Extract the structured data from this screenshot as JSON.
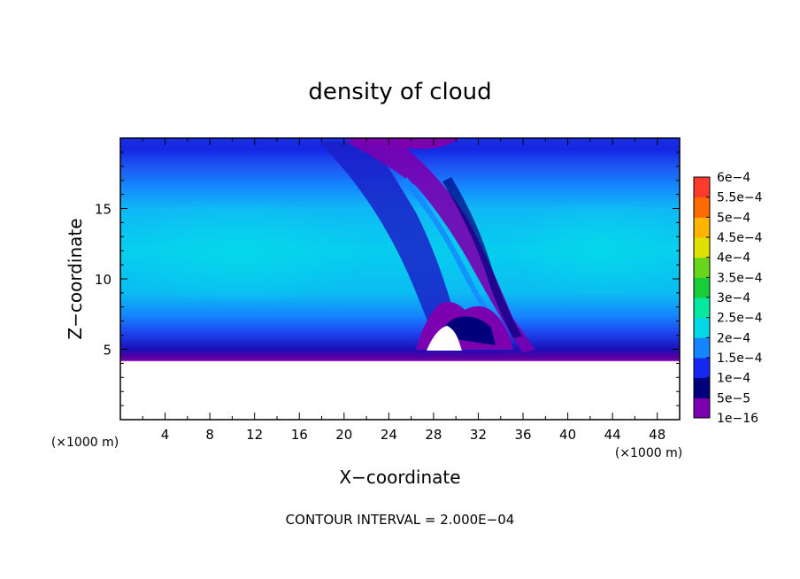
{
  "chart_data": {
    "type": "heatmap",
    "title": "density of cloud",
    "xlabel": "X−coordinate",
    "ylabel": "Z−coordinate",
    "x_unit": "(×1000 m)",
    "y_unit": "(×1000 m)",
    "xlim": [
      0,
      50
    ],
    "ylim": [
      0,
      20
    ],
    "x_ticks": [
      4,
      8,
      12,
      16,
      20,
      24,
      28,
      32,
      36,
      40,
      44,
      48
    ],
    "y_ticks": [
      5,
      10,
      15
    ],
    "cloud_base_z": 5,
    "colorbar": {
      "levels": [
        {
          "label": "1e−16",
          "color": "#7a00b0"
        },
        {
          "label": "5e−5",
          "color": "#00007d"
        },
        {
          "label": "1e−4",
          "color": "#1428ef"
        },
        {
          "label": "1.5e−4",
          "color": "#1586ff"
        },
        {
          "label": "2e−4",
          "color": "#00d7e8"
        },
        {
          "label": "2.5e−4",
          "color": "#05e8a0"
        },
        {
          "label": "3e−4",
          "color": "#19cc39"
        },
        {
          "label": "3.5e−4",
          "color": "#68d51a"
        },
        {
          "label": "4e−4",
          "color": "#dfe000"
        },
        {
          "label": "4.5e−4",
          "color": "#ffb400"
        },
        {
          "label": "5e−4",
          "color": "#ff6b00"
        },
        {
          "label": "5.5e−4",
          "color": "#ff3b2e"
        },
        {
          "label": "6e−4",
          "color": "#ff8c8c"
        }
      ]
    },
    "footer": "CONTOUR INTERVAL = 2.000E−04"
  }
}
